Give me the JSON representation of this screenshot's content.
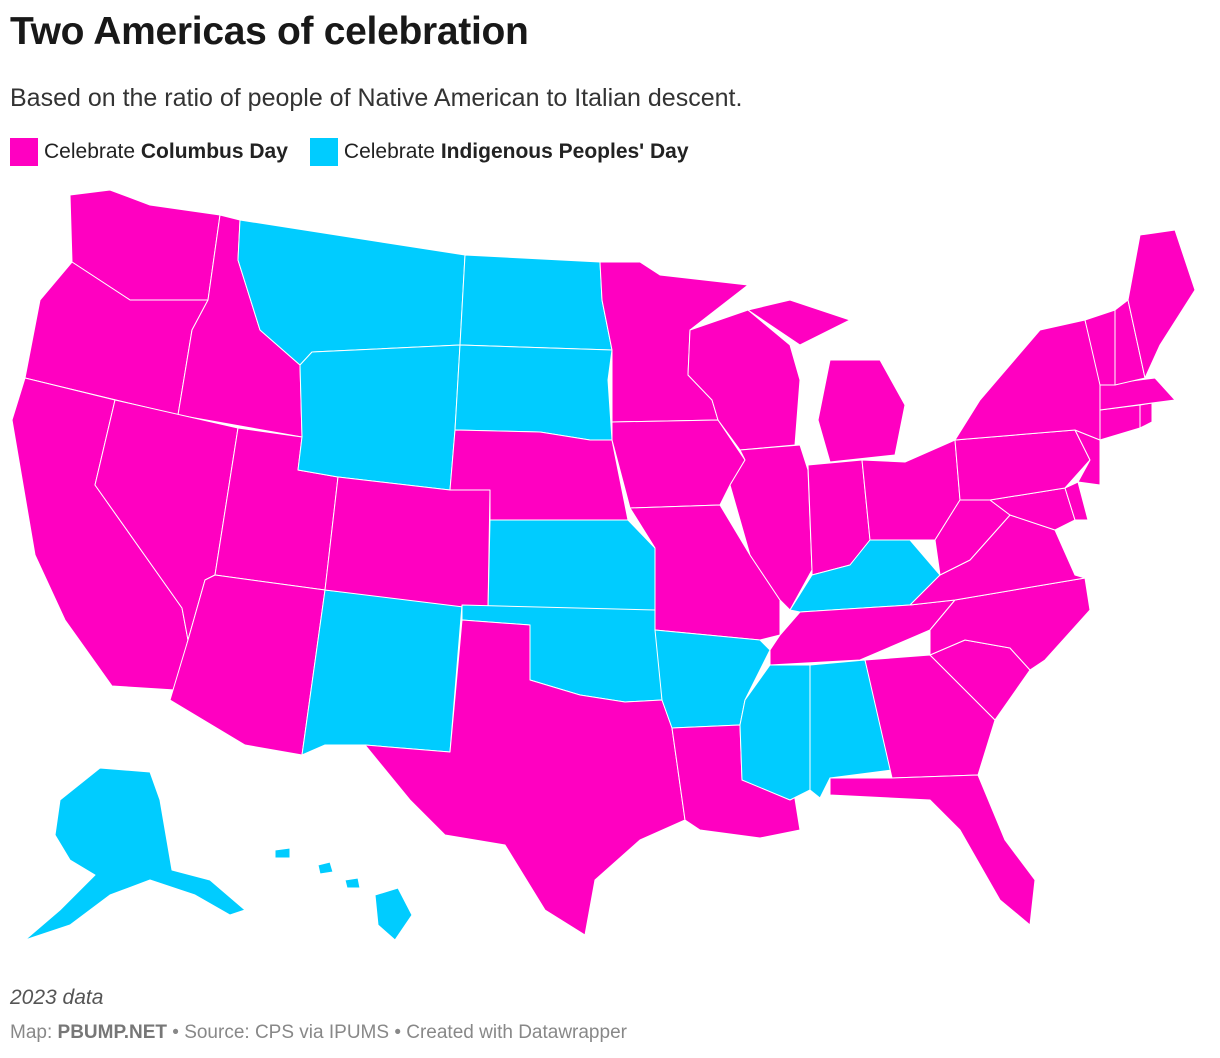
{
  "header": {
    "title": "Two Americas of celebration",
    "subtitle": "Based on the ratio of people of Native American to Italian descent."
  },
  "legend": {
    "columbus": {
      "prefix": "Celebrate ",
      "bold": "Columbus Day",
      "color": "#ff00c1"
    },
    "indigenous": {
      "prefix": "Celebrate ",
      "bold": "Indigenous Peoples' Day",
      "color": "#00ccff"
    }
  },
  "map": {
    "indigenous_states": [
      "Montana",
      "North Dakota",
      "South Dakota",
      "Wyoming",
      "Kansas",
      "Oklahoma",
      "New Mexico",
      "Arkansas",
      "Mississippi",
      "Alabama",
      "Kentucky",
      "Alaska",
      "Hawaii"
    ],
    "columbus_states": [
      "Washington",
      "Oregon",
      "California",
      "Idaho",
      "Nevada",
      "Utah",
      "Arizona",
      "Colorado",
      "Nebraska",
      "Minnesota",
      "Iowa",
      "Missouri",
      "Texas",
      "Louisiana",
      "Wisconsin",
      "Illinois",
      "Michigan",
      "Indiana",
      "Ohio",
      "Tennessee",
      "Georgia",
      "Florida",
      "South Carolina",
      "North Carolina",
      "Virginia",
      "West Virginia",
      "Pennsylvania",
      "New York",
      "Maryland",
      "Delaware",
      "New Jersey",
      "Connecticut",
      "Rhode Island",
      "Massachusetts",
      "Vermont",
      "New Hampshire",
      "Maine"
    ]
  },
  "notes": {
    "year": "2023 data",
    "map_prefix": "Map: ",
    "map_credit": "PBUMP.NET",
    "rest": " • Source: CPS via IPUMS • Created with Datawrapper"
  }
}
